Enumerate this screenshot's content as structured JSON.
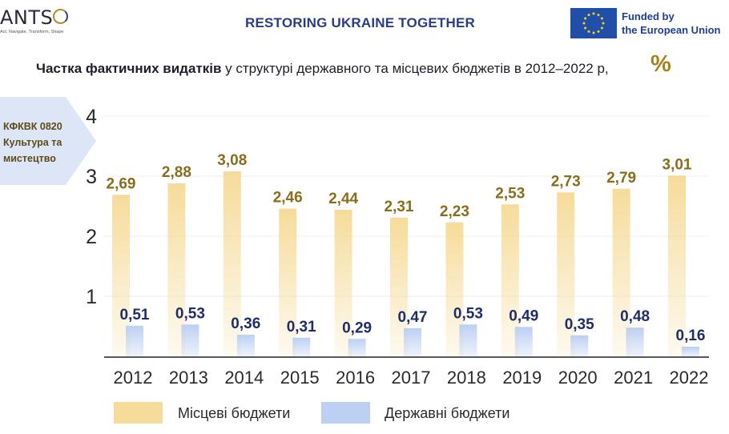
{
  "header": {
    "logo_text": "ANTS",
    "logo_tagline": "Act, Navigate, Transform, Shape",
    "title": "RESTORING UKRAINE TOGETHER",
    "eu_line1": "Funded by",
    "eu_line2": "the European Union"
  },
  "subtitle": {
    "bold": "Частка фактичних видатків",
    "rest": " у структурі державного та місцевих бюджетів в 2012–2022 р,",
    "unit": "%"
  },
  "side_label": {
    "line1": "КФКВК 0820",
    "line2": "Культура та",
    "line3": "мистецтво"
  },
  "colors": {
    "local": "#f6dc9a",
    "state": "#bcd0f3",
    "local_label": "#8a6d1c",
    "state_label": "#1f2e6b"
  },
  "chart_data": {
    "type": "bar",
    "categories": [
      "2012",
      "2013",
      "2014",
      "2015",
      "2016",
      "2017",
      "2018",
      "2019",
      "2020",
      "2021",
      "2022"
    ],
    "series": [
      {
        "name": "Місцеві бюджети",
        "values": [
          2.69,
          2.88,
          3.08,
          2.46,
          2.44,
          2.31,
          2.23,
          2.53,
          2.73,
          2.79,
          3.01
        ],
        "labels": [
          "2,69",
          "2,88",
          "3,08",
          "2,46",
          "2,44",
          "2,31",
          "2,23",
          "2,53",
          "2,73",
          "2,79",
          "3,01"
        ]
      },
      {
        "name": "Державні бюджети",
        "values": [
          0.51,
          0.53,
          0.36,
          0.31,
          0.29,
          0.47,
          0.53,
          0.49,
          0.35,
          0.48,
          0.16
        ],
        "labels": [
          "0,51",
          "0,53",
          "0,36",
          "0,31",
          "0,29",
          "0,47",
          "0,53",
          "0,49",
          "0,35",
          "0,48",
          "0,16"
        ]
      }
    ],
    "yticks": [
      "1",
      "2",
      "3",
      "4"
    ],
    "ylim": [
      0,
      4
    ],
    "grid": true,
    "legend_position": "bottom"
  }
}
